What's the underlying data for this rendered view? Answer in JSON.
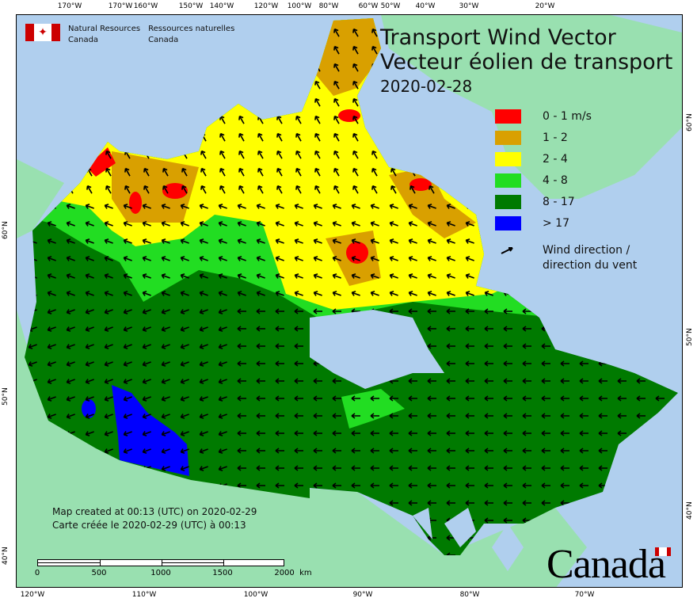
{
  "agency": {
    "en_line1": "Natural Resources",
    "en_line2": "Canada",
    "fr_line1": "Ressources naturelles",
    "fr_line2": "Canada"
  },
  "title": {
    "en": "Transport Wind Vector",
    "fr": "Vecteur éolien de transport",
    "date": "2020-02-28"
  },
  "legend": {
    "classes": [
      {
        "label": "0 - 1 m/s",
        "color": "#ff0000"
      },
      {
        "label": "1 - 2",
        "color": "#d9a000"
      },
      {
        "label": "2 - 4",
        "color": "#ffff00"
      },
      {
        "label": "4 - 8",
        "color": "#22dd22"
      },
      {
        "label": "8 - 17",
        "color": "#007a00"
      },
      {
        "label": "> 17",
        "color": "#0000ff"
      }
    ],
    "wind_en": "Wind direction /",
    "wind_fr": "direction du vent",
    "wind_icon": "arrow-icon"
  },
  "created": {
    "en": "Map created at 00:13 (UTC) on 2020-02-29",
    "fr": "Carte créée le 2020-02-29 (UTC) à 00:13"
  },
  "scale_bar": {
    "labels": [
      "0",
      "500",
      "1000",
      "1500",
      "2000  km"
    ]
  },
  "axes": {
    "top": [
      "170°W",
      "160°W",
      "150°W",
      "140°W",
      "120°W",
      "100°W",
      "80°W",
      "60°W",
      "50°W",
      "40°W",
      "30°W",
      "20°W"
    ],
    "bottom": [
      "120°W",
      "110°W",
      "100°W",
      "90°W",
      "80°W",
      "70°W"
    ],
    "left": [
      "60°N",
      "50°N",
      "40°N"
    ],
    "right": [
      "60°N",
      "50°N",
      "40°N"
    ]
  },
  "colors": {
    "ocean": "#b0cfee",
    "land": "#99e0b0"
  },
  "wordmark": "Canada"
}
